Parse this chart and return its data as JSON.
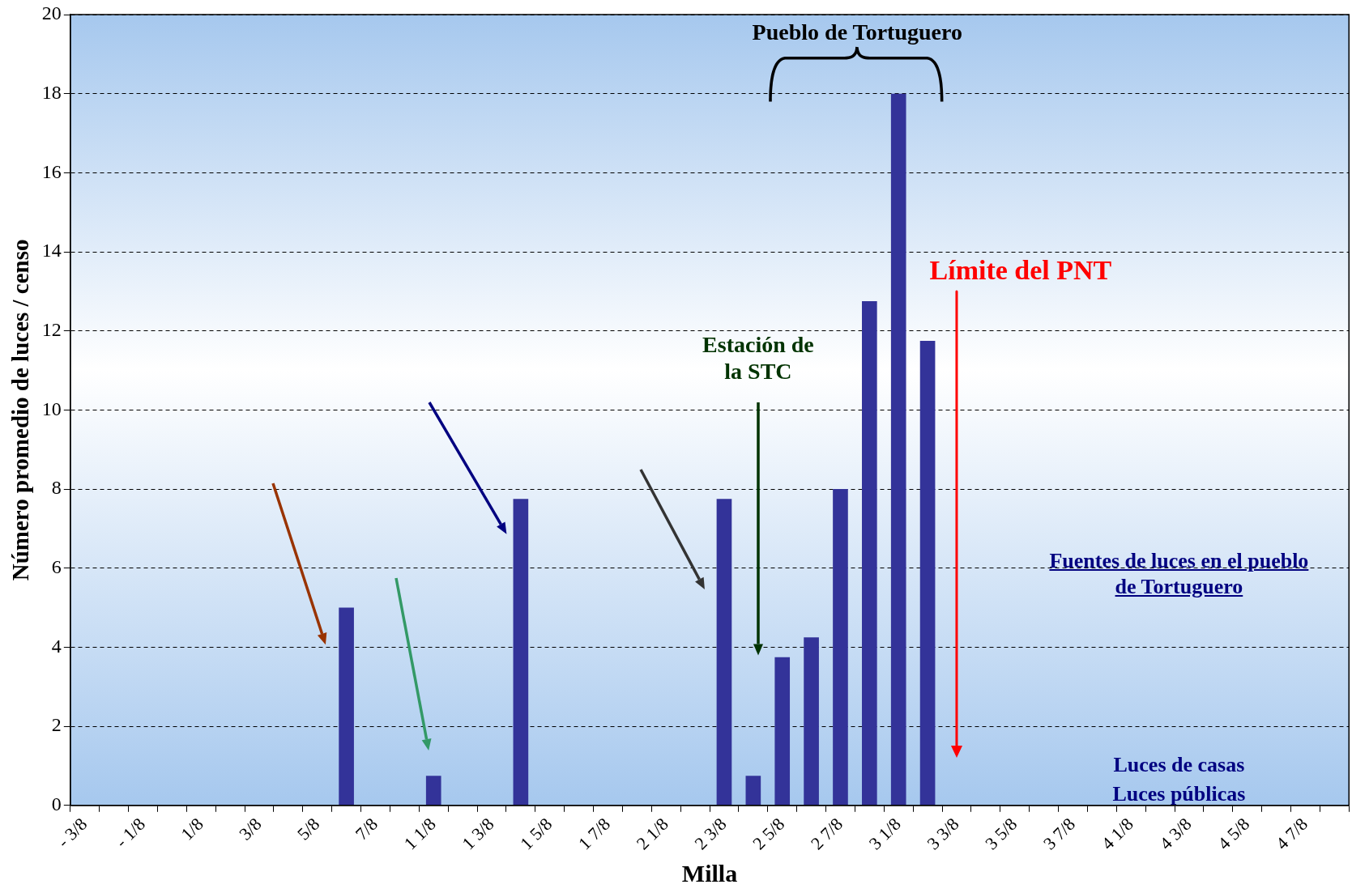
{
  "chart_data": {
    "type": "bar",
    "xlabel": "Milla",
    "ylabel": "Número promedio de luces / censo",
    "categories": [
      "- 3/8",
      null,
      "- 1/8",
      null,
      "1/8",
      null,
      "3/8",
      null,
      "5/8",
      null,
      "7/8",
      null,
      "1 1/8",
      null,
      "1 3/8",
      null,
      "1 5/8",
      null,
      "1 7/8",
      null,
      "2 1/8",
      null,
      "2 3/8",
      null,
      "2 5/8",
      null,
      "2 7/8",
      null,
      "3 1/8",
      null,
      "3 3/8",
      null,
      "3 5/8",
      null,
      "3 7/8",
      null,
      "4 1/8",
      null,
      "4 3/8",
      null,
      "4 5/8",
      null,
      "4 7/8",
      null
    ],
    "values": [
      0,
      0,
      0,
      0,
      0,
      0,
      0,
      0,
      0,
      5,
      0,
      0,
      0.75,
      0,
      0,
      7.75,
      0,
      0,
      0,
      0,
      0,
      0,
      7.75,
      0.75,
      3.75,
      4.25,
      8,
      12.75,
      18,
      11.75,
      0,
      0,
      0,
      0,
      0,
      0,
      0,
      0,
      0,
      0,
      0,
      0,
      0,
      0
    ],
    "color": "#333399",
    "ylim": [
      0,
      20
    ],
    "yticks": [
      0,
      2,
      4,
      6,
      8,
      10,
      12,
      14,
      16,
      18,
      20
    ],
    "grid": "y",
    "legend": false,
    "ref_lines": [
      {
        "axis": "x",
        "value": "3 3/8",
        "label": "Límite del PNT",
        "color": "#ff0000"
      }
    ],
    "annotations": [
      "Pueblo de Tortuguero",
      "Estación de la STC",
      "Fuentes de luces en el pueblo de Tortuguero",
      "Luces de casas",
      "Luces públicas"
    ]
  }
}
